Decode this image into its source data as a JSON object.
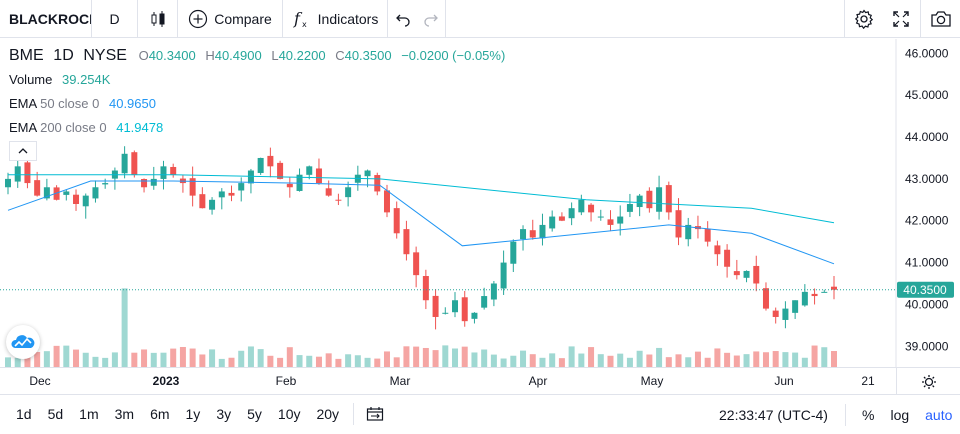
{
  "toolbar": {
    "symbol": "BLACKROCK",
    "interval": "D",
    "compare_label": "Compare",
    "indicators_label": "Indicators"
  },
  "legend": {
    "symbol": "BME",
    "interval": "1D",
    "exchange": "NYSE",
    "open_label": "O",
    "open": "40.3400",
    "high_label": "H",
    "high": "40.4900",
    "low_label": "L",
    "low": "40.2200",
    "close_label": "C",
    "close": "40.3500",
    "change": "−0.0200 (−0.05%)",
    "volume_label": "Volume",
    "volume": "39.254K",
    "ema1_label": "EMA",
    "ema1_params": "50 close 0",
    "ema1_value": "40.9650",
    "ema2_label": "EMA",
    "ema2_params": "200 close 0",
    "ema2_value": "41.9478"
  },
  "price_axis": {
    "labels": [
      "46.0000",
      "45.0000",
      "44.0000",
      "43.0000",
      "42.0000",
      "41.0000",
      "40.0000",
      "39.0000"
    ],
    "current": "40.3500"
  },
  "time_axis": {
    "labels": [
      {
        "text": "Dec",
        "bold": false
      },
      {
        "text": "2023",
        "bold": true
      },
      {
        "text": "Feb",
        "bold": false
      },
      {
        "text": "Mar",
        "bold": false
      },
      {
        "text": "Apr",
        "bold": false
      },
      {
        "text": "May",
        "bold": false
      },
      {
        "text": "Jun",
        "bold": false
      },
      {
        "text": "21",
        "bold": false
      }
    ]
  },
  "ranges": [
    "1d",
    "5d",
    "1m",
    "3m",
    "6m",
    "1y",
    "3y",
    "5y",
    "10y",
    "20y"
  ],
  "clock": "22:33:47 (UTC-4)",
  "scale_options": {
    "percent": "%",
    "log": "log",
    "auto": "auto"
  },
  "colors": {
    "up": "#26a69a",
    "down": "#ef5350",
    "ema50": "#2196f3",
    "ema200": "#00bcd4",
    "accent": "#2962ff"
  },
  "chart_data": {
    "type": "candlestick",
    "ylim": [
      38.6,
      46.2
    ],
    "close_path": [
      43.0,
      43.3,
      42.9,
      42.6,
      42.8,
      42.5,
      42.7,
      42.4,
      42.6,
      42.8,
      42.9,
      43.2,
      43.6,
      43.1,
      42.8,
      43.0,
      43.3,
      43.1,
      42.9,
      42.6,
      42.3,
      42.5,
      42.7,
      42.6,
      42.9,
      43.2,
      43.5,
      43.3,
      43.0,
      42.8,
      43.1,
      43.3,
      42.9,
      42.6,
      42.5,
      42.8,
      43.1,
      43.2,
      42.7,
      42.2,
      41.7,
      41.2,
      40.7,
      40.1,
      39.7,
      39.8,
      40.1,
      39.6,
      39.8,
      40.2,
      40.5,
      41.0,
      41.5,
      41.8,
      41.6,
      41.9,
      42.1,
      42.0,
      42.3,
      42.5,
      42.2,
      42.1,
      41.9,
      42.1,
      42.4,
      42.6,
      42.3,
      42.8,
      42.2,
      41.6,
      41.9,
      41.8,
      41.5,
      41.2,
      40.9,
      40.7,
      40.8,
      40.5,
      39.9,
      39.7,
      39.9,
      40.1,
      40.3,
      40.2,
      40.3,
      40.35
    ],
    "ema50": [
      {
        "t": 0,
        "v": 42.25
      },
      {
        "t": 0.1,
        "v": 42.95
      },
      {
        "t": 0.2,
        "v": 42.95
      },
      {
        "t": 0.35,
        "v": 42.9
      },
      {
        "t": 0.45,
        "v": 42.85
      },
      {
        "t": 0.55,
        "v": 41.4
      },
      {
        "t": 0.65,
        "v": 41.6
      },
      {
        "t": 0.8,
        "v": 41.9
      },
      {
        "t": 0.9,
        "v": 41.7
      },
      {
        "t": 1.0,
        "v": 40.97
      }
    ],
    "ema200": [
      {
        "t": 0,
        "v": 43.1
      },
      {
        "t": 0.2,
        "v": 43.1
      },
      {
        "t": 0.45,
        "v": 43.0
      },
      {
        "t": 0.7,
        "v": 42.5
      },
      {
        "t": 0.9,
        "v": 42.3
      },
      {
        "t": 1.0,
        "v": 41.95
      }
    ]
  }
}
